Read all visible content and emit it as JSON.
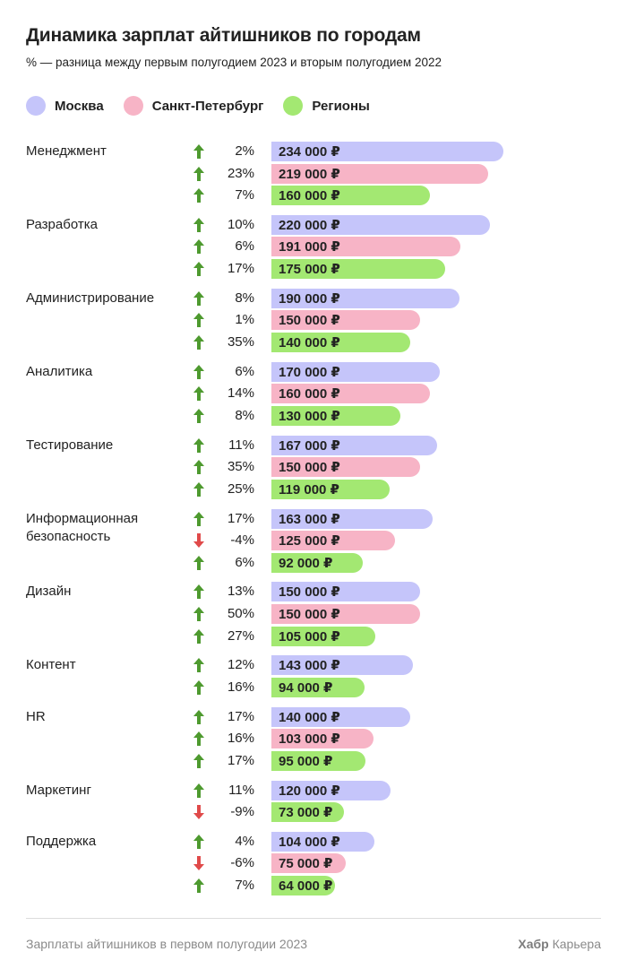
{
  "title": "Динамика зарплат айтишников по городам",
  "subtitle": "% — разница между первым полугодием 2023 и вторым полугодием 2022",
  "legend": [
    {
      "label": "Москва",
      "color": "#c5c5fa"
    },
    {
      "label": "Санкт-Петербург",
      "color": "#f7b4c6"
    },
    {
      "label": "Регионы",
      "color": "#a3e872"
    }
  ],
  "colors": {
    "up_arrow": "#4e9a2f",
    "down_arrow": "#e04a4a"
  },
  "currency": "₽",
  "chart_data": {
    "type": "bar",
    "orientation": "horizontal",
    "unit": "₽",
    "series_names": [
      "Москва",
      "Санкт-Петербург",
      "Регионы"
    ],
    "categories": [
      {
        "name": "Менеджмент",
        "bars": [
          {
            "series": "Москва",
            "value": 234000,
            "label": "234 000 ₽",
            "change": "2%",
            "trend": "up"
          },
          {
            "series": "Санкт-Петербург",
            "value": 219000,
            "label": "219 000 ₽",
            "change": "23%",
            "trend": "up"
          },
          {
            "series": "Регионы",
            "value": 160000,
            "label": "160 000 ₽",
            "change": "7%",
            "trend": "up"
          }
        ]
      },
      {
        "name": "Разработка",
        "bars": [
          {
            "series": "Москва",
            "value": 220000,
            "label": "220 000 ₽",
            "change": "10%",
            "trend": "up"
          },
          {
            "series": "Санкт-Петербург",
            "value": 191000,
            "label": "191 000 ₽",
            "change": "6%",
            "trend": "up"
          },
          {
            "series": "Регионы",
            "value": 175000,
            "label": "175 000 ₽",
            "change": "17%",
            "trend": "up"
          }
        ]
      },
      {
        "name": "Администрирование",
        "bars": [
          {
            "series": "Москва",
            "value": 190000,
            "label": "190 000 ₽",
            "change": "8%",
            "trend": "up"
          },
          {
            "series": "Санкт-Петербург",
            "value": 150000,
            "label": "150 000 ₽",
            "change": "1%",
            "trend": "up"
          },
          {
            "series": "Регионы",
            "value": 140000,
            "label": "140 000 ₽",
            "change": "35%",
            "trend": "up"
          }
        ]
      },
      {
        "name": "Аналитика",
        "bars": [
          {
            "series": "Москва",
            "value": 170000,
            "label": "170 000 ₽",
            "change": "6%",
            "trend": "up"
          },
          {
            "series": "Санкт-Петербург",
            "value": 160000,
            "label": "160 000 ₽",
            "change": "14%",
            "trend": "up"
          },
          {
            "series": "Регионы",
            "value": 130000,
            "label": "130 000 ₽",
            "change": "8%",
            "trend": "up"
          }
        ]
      },
      {
        "name": "Тестирование",
        "bars": [
          {
            "series": "Москва",
            "value": 167000,
            "label": "167 000 ₽",
            "change": "11%",
            "trend": "up"
          },
          {
            "series": "Санкт-Петербург",
            "value": 150000,
            "label": "150 000 ₽",
            "change": "35%",
            "trend": "up"
          },
          {
            "series": "Регионы",
            "value": 119000,
            "label": "119 000 ₽",
            "change": "25%",
            "trend": "up"
          }
        ]
      },
      {
        "name": "Информационная безопасность",
        "bars": [
          {
            "series": "Москва",
            "value": 163000,
            "label": "163 000 ₽",
            "change": "17%",
            "trend": "up"
          },
          {
            "series": "Санкт-Петербург",
            "value": 125000,
            "label": "125 000 ₽",
            "change": "-4%",
            "trend": "down"
          },
          {
            "series": "Регионы",
            "value": 92000,
            "label": "92 000 ₽",
            "change": "6%",
            "trend": "up"
          }
        ]
      },
      {
        "name": "Дизайн",
        "bars": [
          {
            "series": "Москва",
            "value": 150000,
            "label": "150 000 ₽",
            "change": "13%",
            "trend": "up"
          },
          {
            "series": "Санкт-Петербург",
            "value": 150000,
            "label": "150 000 ₽",
            "change": "50%",
            "trend": "up"
          },
          {
            "series": "Регионы",
            "value": 105000,
            "label": "105 000 ₽",
            "change": "27%",
            "trend": "up"
          }
        ]
      },
      {
        "name": "Контент",
        "bars": [
          {
            "series": "Москва",
            "value": 143000,
            "label": "143 000 ₽",
            "change": "12%",
            "trend": "up"
          },
          {
            "series": "Регионы",
            "value": 94000,
            "label": "94 000 ₽",
            "change": "16%",
            "trend": "up"
          }
        ]
      },
      {
        "name": "HR",
        "bars": [
          {
            "series": "Москва",
            "value": 140000,
            "label": "140 000 ₽",
            "change": "17%",
            "trend": "up"
          },
          {
            "series": "Санкт-Петербург",
            "value": 103000,
            "label": "103 000 ₽",
            "change": "16%",
            "trend": "up"
          },
          {
            "series": "Регионы",
            "value": 95000,
            "label": "95 000 ₽",
            "change": "17%",
            "trend": "up"
          }
        ]
      },
      {
        "name": "Маркетинг",
        "bars": [
          {
            "series": "Москва",
            "value": 120000,
            "label": "120 000 ₽",
            "change": "11%",
            "trend": "up"
          },
          {
            "series": "Регионы",
            "value": 73000,
            "label": "73 000 ₽",
            "change": "-9%",
            "trend": "down"
          }
        ]
      },
      {
        "name": "Поддержка",
        "bars": [
          {
            "series": "Москва",
            "value": 104000,
            "label": "104 000 ₽",
            "change": "4%",
            "trend": "up"
          },
          {
            "series": "Санкт-Петербург",
            "value": 75000,
            "label": "75 000 ₽",
            "change": "-6%",
            "trend": "down"
          },
          {
            "series": "Регионы",
            "value": 64000,
            "label": "64 000 ₽",
            "change": "7%",
            "trend": "up"
          }
        ]
      }
    ]
  },
  "footer": {
    "caption": "Зарплаты айтишников в первом полугодии 2023",
    "brand_bold": "Хабр",
    "brand_rest": " Карьера"
  }
}
